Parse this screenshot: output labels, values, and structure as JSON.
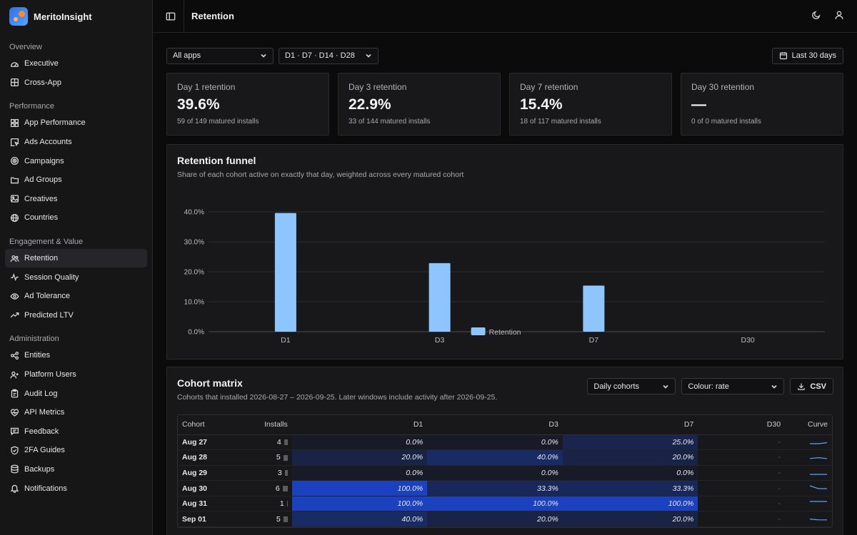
{
  "brand": {
    "name": "MeritoInsight"
  },
  "nav": [
    {
      "title": "Overview",
      "items": [
        {
          "label": "Executive",
          "icon": "gauge-icon",
          "active": false
        },
        {
          "label": "Cross-App",
          "icon": "grid-icon",
          "active": false
        }
      ]
    },
    {
      "title": "Performance",
      "items": [
        {
          "label": "App Performance",
          "icon": "apps-icon",
          "active": false
        },
        {
          "label": "Ads Accounts",
          "icon": "cursor-icon",
          "active": false
        },
        {
          "label": "Campaigns",
          "icon": "target-icon",
          "active": false
        },
        {
          "label": "Ad Groups",
          "icon": "folder-icon",
          "active": false
        },
        {
          "label": "Creatives",
          "icon": "image-icon",
          "active": false
        },
        {
          "label": "Countries",
          "icon": "globe-icon",
          "active": false
        }
      ]
    },
    {
      "title": "Engagement & Value",
      "items": [
        {
          "label": "Retention",
          "icon": "users-icon",
          "active": true
        },
        {
          "label": "Session Quality",
          "icon": "activity-icon",
          "active": false
        },
        {
          "label": "Ad Tolerance",
          "icon": "eye-icon",
          "active": false
        },
        {
          "label": "Predicted LTV",
          "icon": "trend-icon",
          "active": false
        }
      ]
    },
    {
      "title": "Administration",
      "items": [
        {
          "label": "Entities",
          "icon": "share-icon",
          "active": false
        },
        {
          "label": "Platform Users",
          "icon": "user-plus-icon",
          "active": false
        },
        {
          "label": "Audit Log",
          "icon": "clipboard-icon",
          "active": false
        },
        {
          "label": "API Metrics",
          "icon": "heart-pulse-icon",
          "active": false
        },
        {
          "label": "Feedback",
          "icon": "message-icon",
          "active": false
        },
        {
          "label": "2FA Guides",
          "icon": "shield-icon",
          "active": false
        },
        {
          "label": "Backups",
          "icon": "database-icon",
          "active": false
        },
        {
          "label": "Notifications",
          "icon": "bell-icon",
          "active": false
        }
      ]
    }
  ],
  "header": {
    "title": "Retention"
  },
  "filters": {
    "app": "All apps",
    "windows": "D1 · D7 · D14 · D28",
    "range": "Last 30 days"
  },
  "kpis": [
    {
      "label": "Day 1 retention",
      "value": "39.6%",
      "sub": "59 of 149 matured installs"
    },
    {
      "label": "Day 3 retention",
      "value": "22.9%",
      "sub": "33 of 144 matured installs"
    },
    {
      "label": "Day 7 retention",
      "value": "15.4%",
      "sub": "18 of 117 matured installs"
    },
    {
      "label": "Day 30 retention",
      "value": "—",
      "sub": "0 of 0 matured installs"
    }
  ],
  "funnel": {
    "title": "Retention funnel",
    "subtitle": "Share of each cohort active on exactly that day, weighted across every matured cohort"
  },
  "chart_data": {
    "type": "bar",
    "categories": [
      "D1",
      "D3",
      "D7",
      "D30"
    ],
    "series": [
      {
        "name": "Retention",
        "values": [
          39.6,
          22.9,
          15.4,
          0
        ],
        "color": "#8ec5ff"
      }
    ],
    "yticks": [
      "0.0%",
      "10.0%",
      "20.0%",
      "30.0%",
      "40.0%"
    ],
    "ylim": [
      0,
      40
    ],
    "legend": "Retention",
    "legend_position": "bottom-center",
    "grid": true
  },
  "cohort": {
    "title": "Cohort matrix",
    "subtitle": "Cohorts that installed 2026-08-27 – 2026-09-25. Later windows include activity after 2026-09-25.",
    "controls": {
      "grouping": "Daily cohorts",
      "colour": "Colour: rate",
      "export": "CSV"
    },
    "headers": [
      "Cohort",
      "Installs",
      "D1",
      "D3",
      "D7",
      "D30",
      "Curve"
    ],
    "rows": [
      {
        "cohort": "Aug 27",
        "installs": "4",
        "d1": "0.0%",
        "d3": "0.0%",
        "d7": "25.0%",
        "d30": "-",
        "r1": 0.0,
        "r3": 0.0,
        "r7": 0.25
      },
      {
        "cohort": "Aug 28",
        "installs": "5",
        "d1": "20.0%",
        "d3": "40.0%",
        "d7": "20.0%",
        "d30": "-",
        "r1": 0.2,
        "r3": 0.4,
        "r7": 0.2
      },
      {
        "cohort": "Aug 29",
        "installs": "3",
        "d1": "0.0%",
        "d3": "0.0%",
        "d7": "0.0%",
        "d30": "-",
        "r1": 0.0,
        "r3": 0.0,
        "r7": 0.0
      },
      {
        "cohort": "Aug 30",
        "installs": "6",
        "d1": "100.0%",
        "d3": "33.3%",
        "d7": "33.3%",
        "d30": "-",
        "r1": 1.0,
        "r3": 0.333,
        "r7": 0.333
      },
      {
        "cohort": "Aug 31",
        "installs": "1",
        "d1": "100.0%",
        "d3": "100.0%",
        "d7": "100.0%",
        "d30": "-",
        "r1": 1.0,
        "r3": 1.0,
        "r7": 1.0
      },
      {
        "cohort": "Sep 01",
        "installs": "5",
        "d1": "40.0%",
        "d3": "20.0%",
        "d7": "20.0%",
        "d30": "-",
        "r1": 0.4,
        "r3": 0.2,
        "r7": 0.2
      }
    ]
  }
}
